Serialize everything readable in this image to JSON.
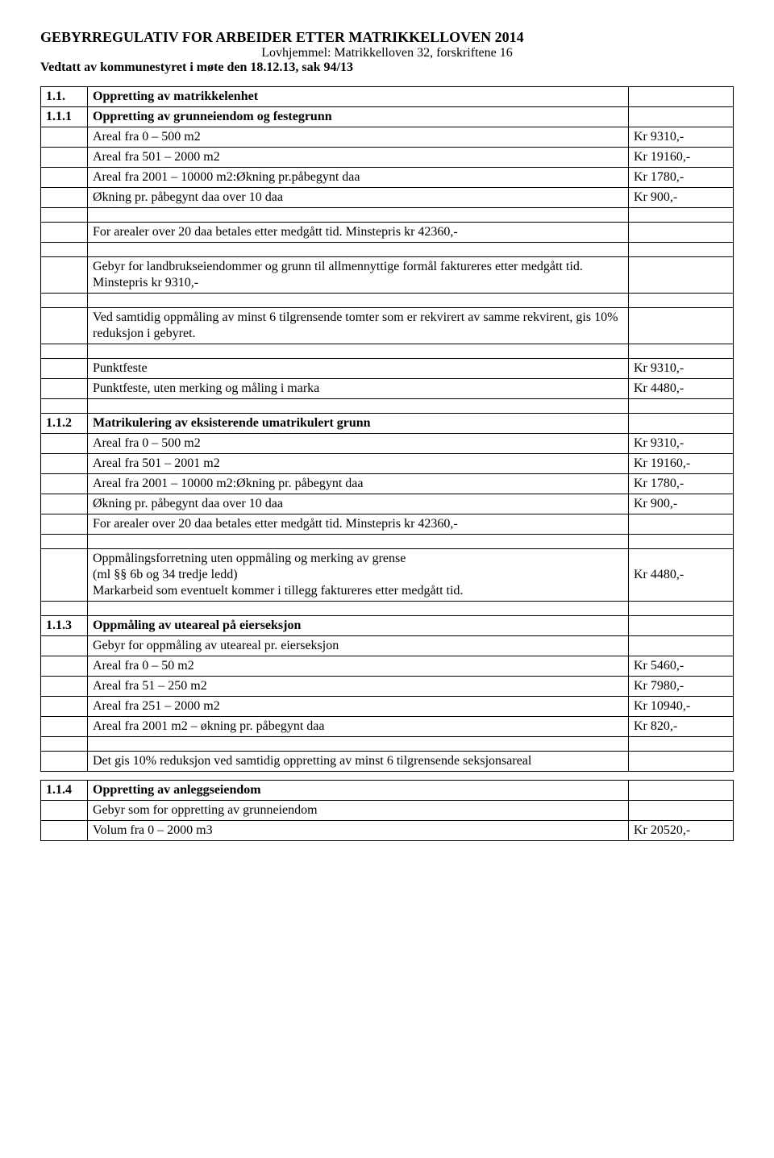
{
  "header": {
    "main_title": "GEBYRREGULATIV FOR ARBEIDER ETTER MATRIKKELLOVEN 2014",
    "subtitle": "Lovhjemmel: Matrikkelloven 32, forskriftene 16",
    "adopted": "Vedtatt av kommunestyret i møte den 18.12.13, sak 94/13"
  },
  "s11": {
    "num": "1.1.",
    "title": "Oppretting av matrikkelenhet"
  },
  "s111": {
    "num": "1.1.1",
    "title": "Oppretting av grunneiendom og festegrunn",
    "r1_label": "Areal fra 0 – 500 m2",
    "r1_price": "Kr  9310,-",
    "r2_label": "Areal fra 501 – 2000 m2",
    "r2_price": "Kr 19160,-",
    "r3_label": "Areal fra 2001 – 10000 m2:Økning pr.påbegynt daa",
    "r3_price": "Kr  1780,-",
    "r4_label": "Økning pr. påbegynt daa over 10 daa",
    "r4_price": "Kr   900,-",
    "note1": "For arealer over 20 daa betales etter medgått tid. Minstepris kr 42360,-",
    "note2": "Gebyr for landbrukseiendommer og grunn til allmennyttige formål faktureres etter medgått tid. Minstepris kr 9310,-",
    "note3": "Ved samtidig oppmåling av minst 6 tilgrensende tomter som er rekvirert av samme rekvirent, gis 10% reduksjon i gebyret.",
    "pf_label": "Punktfeste",
    "pf_price": "Kr  9310,-",
    "pfu_label": "Punktfeste, uten merking og måling i marka",
    "pfu_price": "Kr  4480,-"
  },
  "s112": {
    "num": "1.1.2",
    "title": "Matrikulering av eksisterende umatrikulert grunn",
    "r1_label": "Areal fra 0 – 500 m2",
    "r1_price": "Kr  9310,-",
    "r2_label": "Areal fra 501 – 2001 m2",
    "r2_price": "Kr 19160,-",
    "r3_label": "Areal fra 2001 – 10000 m2:Økning pr. påbegynt daa",
    "r3_price": "Kr  1780,-",
    "r4_label": "Økning pr. påbegynt daa over 10 daa",
    "r4_price": "Kr   900,-",
    "r5_label": "For arealer over 20 daa betales etter medgått tid. Minstepris kr 42360,-",
    "note1_line1": "Oppmålingsforretning uten oppmåling og merking av grense",
    "note1_line2": "(ml §§ 6b og 34 tredje ledd)",
    "note1_line3": "Markarbeid som eventuelt kommer i tillegg faktureres etter medgått tid.",
    "note1_price": "Kr  4480,-"
  },
  "s113": {
    "num": "1.1.3",
    "title": "Oppmåling av uteareal på eierseksjon",
    "sub": "Gebyr for oppmåling av uteareal pr. eierseksjon",
    "r1_label": "Areal fra 0 – 50 m2",
    "r1_price": "Kr  5460,-",
    "r2_label": "Areal fra 51 – 250 m2",
    "r2_price": "Kr  7980,-",
    "r3_label": "Areal fra 251 – 2000 m2",
    "r3_price": "Kr 10940,-",
    "r4_label": "Areal fra 2001 m2 – økning pr. påbegynt daa",
    "r4_price": "Kr   820,-",
    "note1": "Det gis 10% reduksjon ved samtidig oppretting av minst 6 tilgrensende seksjonsareal"
  },
  "s114": {
    "num": "1.1.4",
    "title": "Oppretting av anleggseiendom",
    "sub": "Gebyr som for oppretting av grunneiendom",
    "r1_label": "Volum fra 0 – 2000 m3",
    "r1_price": "Kr 20520,-"
  }
}
